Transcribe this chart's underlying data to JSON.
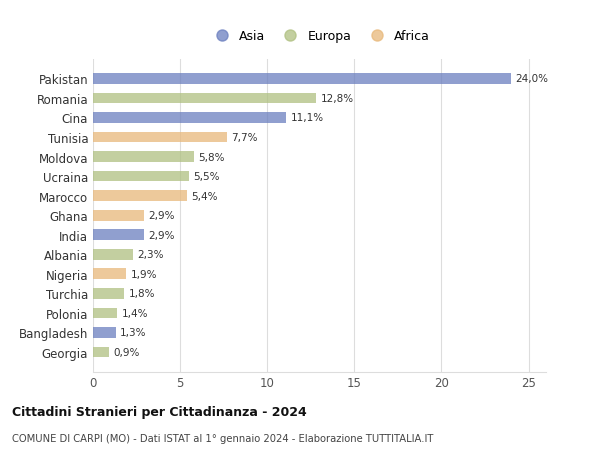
{
  "countries": [
    "Pakistan",
    "Romania",
    "Cina",
    "Tunisia",
    "Moldova",
    "Ucraina",
    "Marocco",
    "Ghana",
    "India",
    "Albania",
    "Nigeria",
    "Turchia",
    "Polonia",
    "Bangladesh",
    "Georgia"
  ],
  "values": [
    24.0,
    12.8,
    11.1,
    7.7,
    5.8,
    5.5,
    5.4,
    2.9,
    2.9,
    2.3,
    1.9,
    1.8,
    1.4,
    1.3,
    0.9
  ],
  "labels": [
    "24,0%",
    "12,8%",
    "11,1%",
    "7,7%",
    "5,8%",
    "5,5%",
    "5,4%",
    "2,9%",
    "2,9%",
    "2,3%",
    "1,9%",
    "1,8%",
    "1,4%",
    "1,3%",
    "0,9%"
  ],
  "continents": [
    "Asia",
    "Europa",
    "Asia",
    "Africa",
    "Europa",
    "Europa",
    "Africa",
    "Africa",
    "Asia",
    "Europa",
    "Africa",
    "Europa",
    "Europa",
    "Asia",
    "Europa"
  ],
  "colors": {
    "Asia": "#6b7fbf",
    "Europa": "#afc080",
    "Africa": "#e8b87a"
  },
  "title": "Cittadini Stranieri per Cittadinanza - 2024",
  "subtitle": "COMUNE DI CARPI (MO) - Dati ISTAT al 1° gennaio 2024 - Elaborazione TUTTITALIA.IT",
  "xlim": [
    0,
    26
  ],
  "xticks": [
    0,
    5,
    10,
    15,
    20,
    25
  ],
  "background_color": "#ffffff",
  "grid_color": "#dddddd",
  "bar_height": 0.55,
  "bar_alpha": 0.75
}
